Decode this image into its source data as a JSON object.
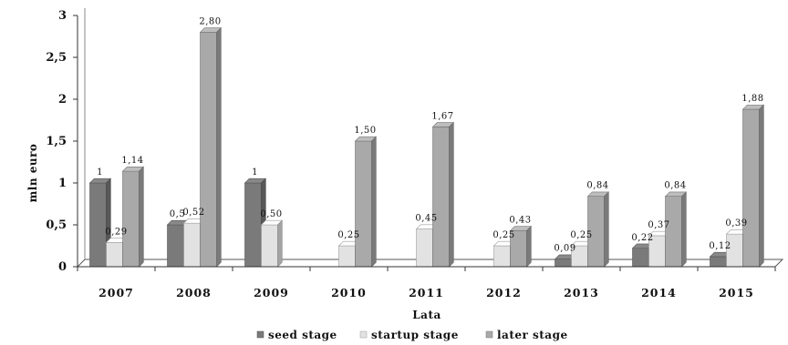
{
  "chart_data": {
    "type": "bar",
    "title": "",
    "xlabel": "Lata",
    "ylabel": "mln euro",
    "ylim": [
      0,
      3
    ],
    "yticks": [
      "0",
      "0,5",
      "1",
      "1,5",
      "2",
      "2,5",
      "3"
    ],
    "grid": false,
    "legend_position": "bottom",
    "categories": [
      "2007",
      "2008",
      "2009",
      "2010",
      "2011",
      "2012",
      "2013",
      "2014",
      "2015"
    ],
    "series": [
      {
        "name": "seed stage",
        "color": "#7a7a7a",
        "values": [
          1,
          0.5,
          1,
          null,
          null,
          null,
          0.09,
          0.22,
          0.12
        ],
        "labels": [
          "1",
          "0,5",
          "1",
          "",
          "",
          "",
          "0,09",
          "0,22",
          "0,12"
        ]
      },
      {
        "name": "startup stage",
        "color": "#e2e2e2",
        "values": [
          0.29,
          0.52,
          0.5,
          0.25,
          0.45,
          0.25,
          0.25,
          0.37,
          0.39
        ],
        "labels": [
          "0,29",
          "0,52",
          "0,50",
          "0,25",
          "0,45",
          "0,25",
          "0,25",
          "0,37",
          "0,39"
        ]
      },
      {
        "name": "later stage",
        "color": "#a9a9a9",
        "values": [
          1.14,
          2.8,
          null,
          1.5,
          1.67,
          0.43,
          0.84,
          0.84,
          1.88
        ],
        "labels": [
          "1,14",
          "2,80",
          "",
          "1,50",
          "1,67",
          "0,43",
          "0,84",
          "0,84",
          "1,88"
        ]
      }
    ]
  }
}
